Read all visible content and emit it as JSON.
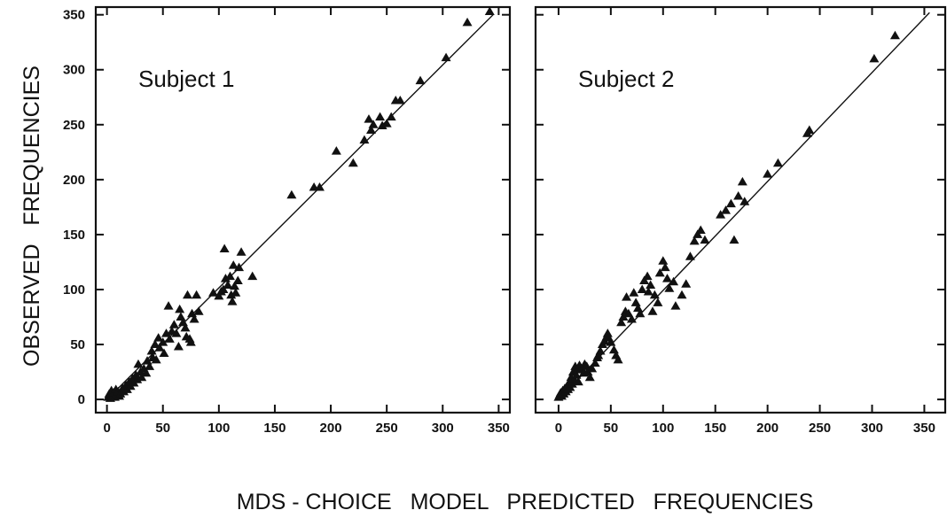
{
  "chart_data": [
    {
      "type": "scatter",
      "panel_label": "Subject 1",
      "xlim": [
        -10,
        360
      ],
      "ylim": [
        -12,
        357
      ],
      "xticks": [
        0,
        50,
        100,
        150,
        200,
        250,
        300,
        350
      ],
      "yticks": [
        0,
        50,
        100,
        150,
        200,
        250,
        300,
        350
      ],
      "marker": "triangle",
      "fit_line": [
        [
          0,
          0
        ],
        [
          345,
          350
        ]
      ],
      "points": [
        [
          1,
          2
        ],
        [
          2,
          5
        ],
        [
          3,
          1
        ],
        [
          4,
          8
        ],
        [
          5,
          3
        ],
        [
          6,
          6
        ],
        [
          7,
          2
        ],
        [
          8,
          9
        ],
        [
          9,
          4
        ],
        [
          10,
          7
        ],
        [
          11,
          3
        ],
        [
          12,
          5
        ],
        [
          14,
          10
        ],
        [
          15,
          7
        ],
        [
          17,
          13
        ],
        [
          18,
          9
        ],
        [
          20,
          16
        ],
        [
          21,
          12
        ],
        [
          23,
          19
        ],
        [
          24,
          15
        ],
        [
          26,
          22
        ],
        [
          27,
          18
        ],
        [
          28,
          32
        ],
        [
          30,
          25
        ],
        [
          31,
          20
        ],
        [
          33,
          28
        ],
        [
          35,
          24
        ],
        [
          36,
          35
        ],
        [
          38,
          30
        ],
        [
          40,
          44
        ],
        [
          41,
          38
        ],
        [
          43,
          50
        ],
        [
          44,
          36
        ],
        [
          46,
          56
        ],
        [
          47,
          47
        ],
        [
          50,
          52
        ],
        [
          51,
          42
        ],
        [
          53,
          60
        ],
        [
          55,
          85
        ],
        [
          56,
          55
        ],
        [
          58,
          62
        ],
        [
          60,
          68
        ],
        [
          62,
          60
        ],
        [
          64,
          48
        ],
        [
          65,
          82
        ],
        [
          66,
          75
        ],
        [
          68,
          70
        ],
        [
          70,
          65
        ],
        [
          71,
          57
        ],
        [
          72,
          95
        ],
        [
          74,
          55
        ],
        [
          75,
          52
        ],
        [
          76,
          78
        ],
        [
          78,
          73
        ],
        [
          80,
          95
        ],
        [
          82,
          80
        ],
        [
          95,
          97
        ],
        [
          100,
          94
        ],
        [
          102,
          98
        ],
        [
          104,
          100
        ],
        [
          105,
          137
        ],
        [
          106,
          110
        ],
        [
          108,
          104
        ],
        [
          110,
          112
        ],
        [
          111,
          95
        ],
        [
          112,
          89
        ],
        [
          113,
          122
        ],
        [
          114,
          103
        ],
        [
          115,
          97
        ],
        [
          117,
          108
        ],
        [
          118,
          120
        ],
        [
          120,
          134
        ],
        [
          130,
          112
        ],
        [
          165,
          186
        ],
        [
          185,
          193
        ],
        [
          190,
          193
        ],
        [
          205,
          226
        ],
        [
          220,
          215
        ],
        [
          230,
          236
        ],
        [
          234,
          255
        ],
        [
          236,
          245
        ],
        [
          238,
          250
        ],
        [
          244,
          257
        ],
        [
          246,
          249
        ],
        [
          250,
          251
        ],
        [
          254,
          257
        ],
        [
          258,
          272
        ],
        [
          262,
          272
        ],
        [
          280,
          290
        ],
        [
          303,
          311
        ],
        [
          322,
          343
        ],
        [
          342,
          353
        ]
      ]
    },
    {
      "type": "scatter",
      "panel_label": "Subject 2",
      "xlim": [
        -22,
        370
      ],
      "ylim": [
        -12,
        357
      ],
      "xticks": [
        0,
        50,
        100,
        150,
        200,
        250,
        300,
        350
      ],
      "yticks": [
        0,
        50,
        100,
        150,
        200,
        250,
        300,
        350
      ],
      "marker": "triangle",
      "fit_line": [
        [
          0,
          0
        ],
        [
          355,
          352
        ]
      ],
      "points": [
        [
          0,
          2
        ],
        [
          1,
          4
        ],
        [
          2,
          6
        ],
        [
          3,
          3
        ],
        [
          4,
          8
        ],
        [
          5,
          5
        ],
        [
          6,
          10
        ],
        [
          7,
          7
        ],
        [
          8,
          12
        ],
        [
          9,
          9
        ],
        [
          10,
          15
        ],
        [
          11,
          11
        ],
        [
          12,
          20
        ],
        [
          13,
          14
        ],
        [
          14,
          25
        ],
        [
          15,
          18
        ],
        [
          16,
          30
        ],
        [
          17,
          22
        ],
        [
          18,
          27
        ],
        [
          19,
          16
        ],
        [
          20,
          31
        ],
        [
          22,
          28
        ],
        [
          24,
          24
        ],
        [
          25,
          32
        ],
        [
          27,
          30
        ],
        [
          28,
          25
        ],
        [
          30,
          20
        ],
        [
          32,
          28
        ],
        [
          35,
          33
        ],
        [
          37,
          38
        ],
        [
          38,
          40
        ],
        [
          40,
          44
        ],
        [
          42,
          50
        ],
        [
          44,
          53
        ],
        [
          46,
          57
        ],
        [
          47,
          60
        ],
        [
          48,
          56
        ],
        [
          50,
          52
        ],
        [
          53,
          45
        ],
        [
          55,
          40
        ],
        [
          57,
          36
        ],
        [
          60,
          70
        ],
        [
          62,
          75
        ],
        [
          64,
          80
        ],
        [
          65,
          93
        ],
        [
          67,
          78
        ],
        [
          70,
          73
        ],
        [
          72,
          97
        ],
        [
          74,
          88
        ],
        [
          76,
          83
        ],
        [
          78,
          78
        ],
        [
          80,
          100
        ],
        [
          82,
          108
        ],
        [
          85,
          112
        ],
        [
          86,
          98
        ],
        [
          88,
          104
        ],
        [
          90,
          80
        ],
        [
          92,
          95
        ],
        [
          95,
          88
        ],
        [
          97,
          115
        ],
        [
          100,
          126
        ],
        [
          102,
          120
        ],
        [
          104,
          110
        ],
        [
          106,
          101
        ],
        [
          110,
          107
        ],
        [
          112,
          85
        ],
        [
          118,
          95
        ],
        [
          122,
          105
        ],
        [
          126,
          130
        ],
        [
          130,
          144
        ],
        [
          133,
          150
        ],
        [
          136,
          154
        ],
        [
          140,
          145
        ],
        [
          155,
          168
        ],
        [
          160,
          172
        ],
        [
          165,
          178
        ],
        [
          168,
          145
        ],
        [
          172,
          185
        ],
        [
          176,
          198
        ],
        [
          178,
          180
        ],
        [
          200,
          205
        ],
        [
          210,
          215
        ],
        [
          238,
          242
        ],
        [
          240,
          245
        ],
        [
          302,
          310
        ],
        [
          322,
          331
        ]
      ]
    }
  ],
  "labels": {
    "y_axis_title": "OBSERVED   FREQUENCIES",
    "x_axis_title": "MDS - CHOICE   MODEL   PREDICTED   FREQUENCIES"
  }
}
